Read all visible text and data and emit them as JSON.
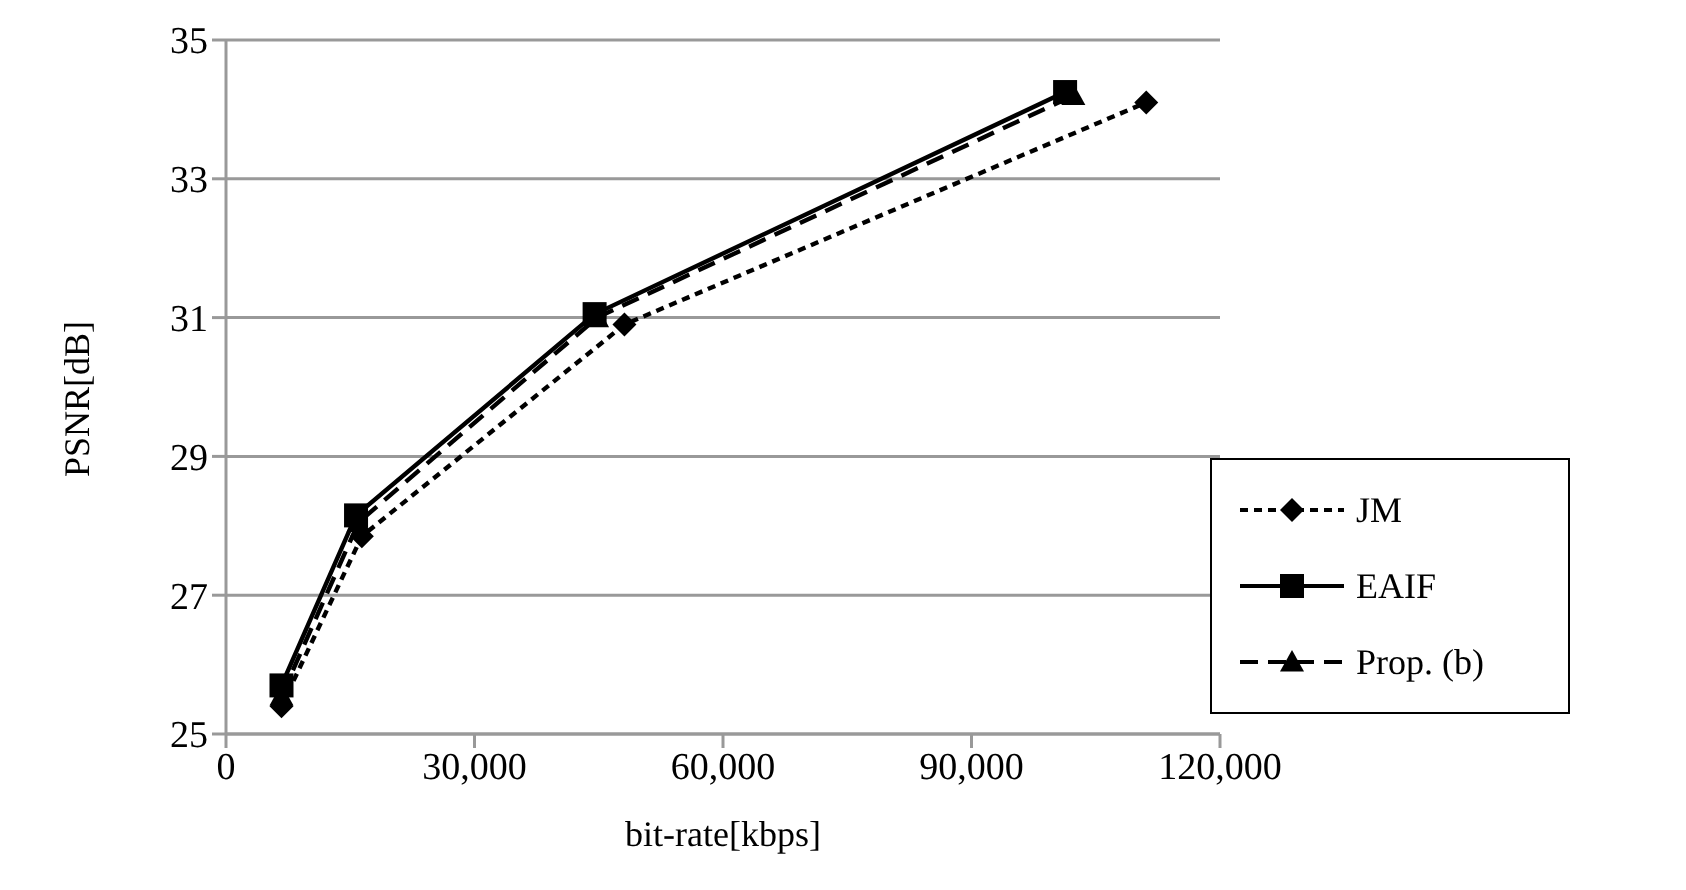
{
  "chart_data": {
    "type": "line",
    "xlabel": "bit-rate[kbps]",
    "ylabel": "PSNR[dB]",
    "xlim": [
      0,
      120000
    ],
    "xticks": [
      {
        "value": 0,
        "label": "0"
      },
      {
        "value": 30000,
        "label": "30,000"
      },
      {
        "value": 60000,
        "label": "60,000"
      },
      {
        "value": 90000,
        "label": "90,000"
      },
      {
        "value": 120000,
        "label": "120,000"
      }
    ],
    "ylim": [
      25,
      35
    ],
    "yticks": [
      25,
      27,
      29,
      31,
      33,
      35
    ],
    "grid": "y",
    "legend": "bottom right",
    "series": [
      {
        "name": "JM",
        "color": "#000000",
        "marker": "diamond",
        "line_style": "dotted",
        "x": [
          6700,
          16400,
          48100,
          111100
        ],
        "values": [
          25.4,
          27.85,
          30.9,
          34.1
        ]
      },
      {
        "name": "EAIF",
        "color": "#000000",
        "marker": "square",
        "line_style": "solid",
        "x": [
          6700,
          15700,
          44500,
          101300
        ],
        "values": [
          25.7,
          28.15,
          31.05,
          34.25
        ]
      },
      {
        "name": "Prop. (b)",
        "color": "#000000",
        "marker": "triangle",
        "line_style": "dashed",
        "x": [
          6700,
          16000,
          44800,
          102300
        ],
        "values": [
          25.55,
          28.05,
          31.0,
          34.2
        ]
      }
    ]
  }
}
